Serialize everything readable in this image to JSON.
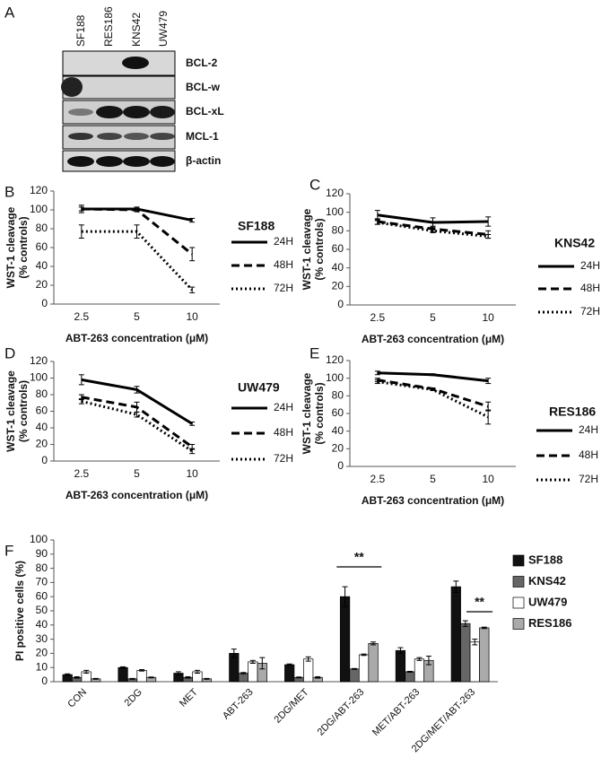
{
  "blot": {
    "panel_label": "A",
    "lanes": [
      "SF188",
      "RES186",
      "KNS42",
      "UW479"
    ],
    "proteins": [
      "BCL-2",
      "BCL-w",
      "BCL-xL",
      "MCL-1",
      "β-actin"
    ]
  },
  "chart_data": [
    {
      "type": "line",
      "panel_label": "B",
      "title": "SF188",
      "xlabel": "ABT-263 concentration (μM)",
      "ylabel": [
        "WST-1 cleavage",
        "(% controls)"
      ],
      "categories": [
        "2.5",
        "5",
        "10"
      ],
      "ylim": [
        0,
        120
      ],
      "yticks": [
        0,
        20,
        40,
        60,
        80,
        100,
        120
      ],
      "series": [
        {
          "name": "24H",
          "color": "#000000",
          "line_style": "solid",
          "values": [
            101,
            101,
            89
          ],
          "errors": [
            4,
            2,
            2
          ]
        },
        {
          "name": "48H",
          "color": "#000000",
          "line_style": "dashed",
          "values": [
            101,
            100,
            53
          ],
          "errors": [
            2,
            2,
            7
          ]
        },
        {
          "name": "72H",
          "color": "#000000",
          "line_style": "dotted",
          "values": [
            77,
            77,
            15
          ],
          "errors": [
            7,
            7,
            3
          ]
        }
      ]
    },
    {
      "type": "line",
      "panel_label": "C",
      "title": "KNS42",
      "xlabel": "ABT-263 concentration (μM)",
      "ylabel": [
        "WST-1 cleavage",
        "(% controls)"
      ],
      "categories": [
        "2.5",
        "5",
        "10"
      ],
      "ylim": [
        0,
        120
      ],
      "yticks": [
        0,
        20,
        40,
        60,
        80,
        100,
        120
      ],
      "series": [
        {
          "name": "24H",
          "color": "#000000",
          "line_style": "solid",
          "values": [
            97,
            89,
            90
          ],
          "errors": [
            5,
            5,
            5
          ]
        },
        {
          "name": "48H",
          "color": "#000000",
          "line_style": "dashed",
          "values": [
            90,
            82,
            76
          ],
          "errors": [
            3,
            3,
            4
          ]
        },
        {
          "name": "72H",
          "color": "#000000",
          "line_style": "dotted",
          "values": [
            89,
            80,
            74
          ],
          "errors": [
            2,
            2,
            2
          ]
        }
      ]
    },
    {
      "type": "line",
      "panel_label": "D",
      "title": "UW479",
      "xlabel": "ABT-263 concentration (μM)",
      "ylabel": [
        "WST-1 cleavage",
        "(% controls)"
      ],
      "categories": [
        "2.5",
        "5",
        "10"
      ],
      "ylim": [
        0,
        120
      ],
      "yticks": [
        0,
        20,
        40,
        60,
        80,
        100,
        120
      ],
      "series": [
        {
          "name": "24H",
          "color": "#000000",
          "line_style": "solid",
          "values": [
            98,
            86,
            45
          ],
          "errors": [
            6,
            4,
            2
          ]
        },
        {
          "name": "48H",
          "color": "#000000",
          "line_style": "dashed",
          "values": [
            77,
            65,
            17
          ],
          "errors": [
            3,
            6,
            3
          ]
        },
        {
          "name": "72H",
          "color": "#000000",
          "line_style": "dotted",
          "values": [
            72,
            56,
            12
          ],
          "errors": [
            3,
            3,
            3
          ]
        }
      ]
    },
    {
      "type": "line",
      "panel_label": "E",
      "title": "RES186",
      "xlabel": "ABT-263 concentration (μM)",
      "ylabel": [
        "WST-1 cleavage",
        "(% controls)"
      ],
      "categories": [
        "2.5",
        "5",
        "10"
      ],
      "ylim": [
        0,
        120
      ],
      "yticks": [
        0,
        20,
        40,
        60,
        80,
        100,
        120
      ],
      "series": [
        {
          "name": "24H",
          "color": "#000000",
          "line_style": "solid",
          "values": [
            106,
            104,
            97
          ],
          "errors": [
            2,
            1,
            3
          ]
        },
        {
          "name": "48H",
          "color": "#000000",
          "line_style": "dashed",
          "values": [
            98,
            88,
            68
          ],
          "errors": [
            2,
            1,
            5
          ]
        },
        {
          "name": "72H",
          "color": "#000000",
          "line_style": "dotted",
          "values": [
            96,
            87,
            56
          ],
          "errors": [
            2,
            1,
            8
          ]
        }
      ]
    },
    {
      "type": "bar",
      "panel_label": "F",
      "ylabel": "PI positive cells (%)",
      "categories": [
        "CON",
        "2DG",
        "MET",
        "ABT-263",
        "2DG/MET",
        "2DG/ABT-263",
        "MET/ABT-263",
        "2DG/MET/ABT-263"
      ],
      "ylim": [
        0,
        100
      ],
      "yticks": [
        0,
        10,
        20,
        30,
        40,
        50,
        60,
        70,
        80,
        90,
        100
      ],
      "series": [
        {
          "name": "SF188",
          "color": "#111111",
          "values": [
            5,
            10,
            6,
            20,
            12,
            60,
            22,
            67
          ],
          "errors": [
            0.5,
            0.5,
            1,
            3,
            0.5,
            7,
            2,
            4
          ]
        },
        {
          "name": "KNS42",
          "color": "#666666",
          "values": [
            3,
            2,
            3,
            6,
            3,
            9,
            7,
            41
          ],
          "errors": [
            0.5,
            0.3,
            0.5,
            0.5,
            0.3,
            0.3,
            0.3,
            2
          ]
        },
        {
          "name": "UW479",
          "color": "#ffffff",
          "values": [
            7,
            8,
            7,
            14,
            16,
            19,
            16,
            28
          ],
          "errors": [
            1,
            0.5,
            1,
            1,
            1.5,
            0.5,
            1,
            2
          ]
        },
        {
          "name": "RES186",
          "color": "#aaaaaa",
          "values": [
            2,
            3,
            2,
            13,
            3,
            27,
            15,
            38
          ],
          "errors": [
            0.3,
            0.3,
            0.3,
            4,
            0.5,
            1,
            3,
            0.5
          ]
        }
      ],
      "annotations": [
        {
          "text": "**"
        },
        {
          "text": "**"
        }
      ]
    }
  ]
}
